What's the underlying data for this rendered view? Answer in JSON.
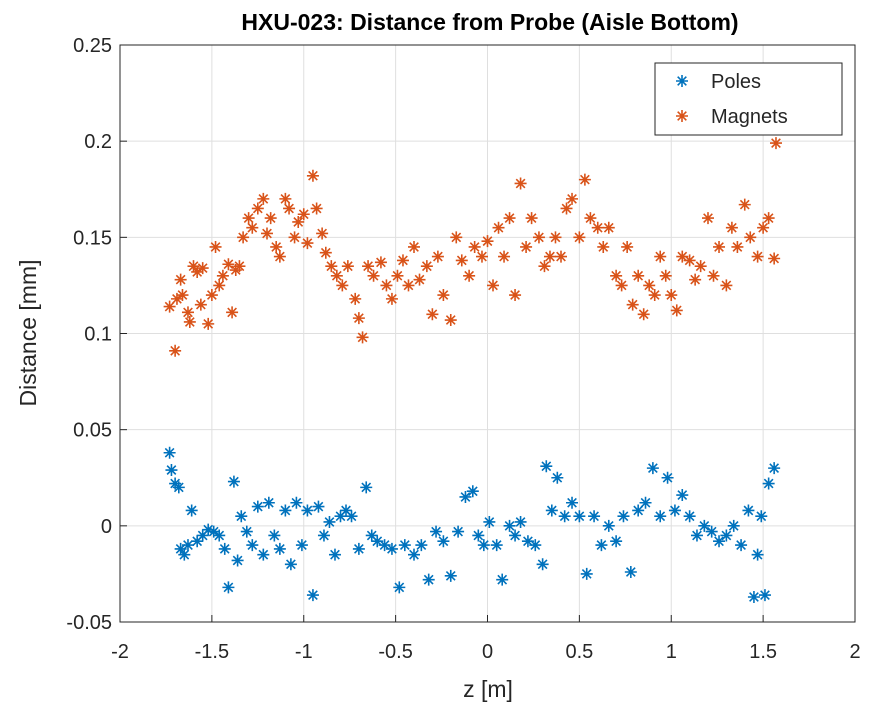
{
  "chart_data": {
    "type": "scatter",
    "title": "HXU-023: Distance from Probe (Aisle Bottom)",
    "xlabel": "z [m]",
    "ylabel": "Distance [mm]",
    "xlim": [
      -2,
      2
    ],
    "xticks": [
      -2,
      -1.5,
      -1,
      -0.5,
      0,
      0.5,
      1,
      1.5,
      2
    ],
    "ylim": [
      -0.05,
      0.25
    ],
    "yticks": [
      -0.05,
      0,
      0.05,
      0.1,
      0.15,
      0.2,
      0.25
    ],
    "grid": true,
    "legend": "northeast",
    "marker": "*",
    "series": [
      {
        "name": "Poles",
        "color": "#0072bd",
        "x": [
          -1.73,
          -1.72,
          -1.7,
          -1.68,
          -1.67,
          -1.65,
          -1.63,
          -1.61,
          -1.58,
          -1.55,
          -1.52,
          -1.49,
          -1.46,
          -1.43,
          -1.41,
          -1.38,
          -1.36,
          -1.34,
          -1.31,
          -1.28,
          -1.25,
          -1.22,
          -1.19,
          -1.16,
          -1.13,
          -1.1,
          -1.07,
          -1.04,
          -1.01,
          -0.98,
          -0.95,
          -0.92,
          -0.89,
          -0.86,
          -0.83,
          -0.8,
          -0.77,
          -0.74,
          -0.7,
          -0.66,
          -0.63,
          -0.6,
          -0.56,
          -0.52,
          -0.48,
          -0.45,
          -0.4,
          -0.36,
          -0.32,
          -0.28,
          -0.24,
          -0.2,
          -0.16,
          -0.12,
          -0.08,
          -0.05,
          -0.02,
          0.01,
          0.05,
          0.08,
          0.12,
          0.15,
          0.18,
          0.22,
          0.26,
          0.3,
          0.32,
          0.35,
          0.38,
          0.42,
          0.46,
          0.5,
          0.54,
          0.58,
          0.62,
          0.66,
          0.7,
          0.74,
          0.78,
          0.82,
          0.86,
          0.9,
          0.94,
          0.98,
          1.02,
          1.06,
          1.1,
          1.14,
          1.18,
          1.22,
          1.26,
          1.3,
          1.34,
          1.38,
          1.42,
          1.45,
          1.47,
          1.49,
          1.51,
          1.53,
          1.56
        ],
        "values": [
          0.038,
          0.029,
          0.022,
          0.02,
          -0.012,
          -0.015,
          -0.01,
          0.008,
          -0.008,
          -0.005,
          -0.002,
          -0.003,
          -0.005,
          -0.012,
          -0.032,
          0.023,
          -0.018,
          0.005,
          -0.003,
          -0.01,
          0.01,
          -0.015,
          0.012,
          -0.005,
          -0.012,
          0.008,
          -0.02,
          0.012,
          -0.01,
          0.008,
          -0.036,
          0.01,
          -0.005,
          0.002,
          -0.015,
          0.005,
          0.008,
          0.005,
          -0.012,
          0.02,
          -0.005,
          -0.008,
          -0.01,
          -0.012,
          -0.032,
          -0.01,
          -0.015,
          -0.01,
          -0.028,
          -0.003,
          -0.008,
          -0.026,
          -0.003,
          0.015,
          0.018,
          -0.005,
          -0.01,
          0.002,
          -0.01,
          -0.028,
          0,
          -0.005,
          0.002,
          -0.008,
          -0.01,
          -0.02,
          0.031,
          0.008,
          0.025,
          0.005,
          0.012,
          0.005,
          -0.025,
          0.005,
          -0.01,
          0,
          -0.008,
          0.005,
          -0.024,
          0.008,
          0.012,
          0.03,
          0.005,
          0.025,
          0.008,
          0.016,
          0.005,
          -0.005,
          0,
          -0.003,
          -0.008,
          -0.005,
          0,
          -0.01,
          0.008,
          -0.037,
          -0.015,
          0.005,
          -0.036,
          0.022,
          0.03
        ]
      },
      {
        "name": "Magnets",
        "color": "#d95319",
        "x": [
          -1.73,
          -1.7,
          -1.69,
          -1.67,
          -1.66,
          -1.63,
          -1.62,
          -1.6,
          -1.58,
          -1.56,
          -1.55,
          -1.52,
          -1.5,
          -1.48,
          -1.46,
          -1.44,
          -1.41,
          -1.39,
          -1.37,
          -1.35,
          -1.33,
          -1.3,
          -1.28,
          -1.25,
          -1.22,
          -1.2,
          -1.18,
          -1.15,
          -1.13,
          -1.1,
          -1.08,
          -1.05,
          -1.03,
          -1,
          -0.98,
          -0.95,
          -0.93,
          -0.9,
          -0.88,
          -0.85,
          -0.82,
          -0.79,
          -0.76,
          -0.72,
          -0.7,
          -0.68,
          -0.65,
          -0.62,
          -0.58,
          -0.55,
          -0.52,
          -0.49,
          -0.46,
          -0.43,
          -0.4,
          -0.37,
          -0.33,
          -0.3,
          -0.27,
          -0.24,
          -0.2,
          -0.17,
          -0.14,
          -0.1,
          -0.07,
          -0.03,
          0,
          0.03,
          0.06,
          0.09,
          0.12,
          0.15,
          0.18,
          0.21,
          0.24,
          0.28,
          0.31,
          0.34,
          0.37,
          0.4,
          0.43,
          0.46,
          0.5,
          0.53,
          0.56,
          0.6,
          0.63,
          0.66,
          0.7,
          0.73,
          0.76,
          0.79,
          0.82,
          0.85,
          0.88,
          0.91,
          0.94,
          0.97,
          1,
          1.03,
          1.06,
          1.1,
          1.13,
          1.16,
          1.2,
          1.23,
          1.26,
          1.3,
          1.33,
          1.36,
          1.4,
          1.43,
          1.47,
          1.5,
          1.53,
          1.56,
          1.57
        ],
        "values": [
          0.114,
          0.091,
          0.118,
          0.128,
          0.12,
          0.111,
          0.106,
          0.135,
          0.132,
          0.115,
          0.134,
          0.105,
          0.12,
          0.145,
          0.125,
          0.13,
          0.136,
          0.111,
          0.133,
          0.135,
          0.15,
          0.16,
          0.155,
          0.165,
          0.17,
          0.152,
          0.16,
          0.145,
          0.14,
          0.17,
          0.165,
          0.15,
          0.158,
          0.162,
          0.147,
          0.182,
          0.165,
          0.152,
          0.142,
          0.135,
          0.13,
          0.125,
          0.135,
          0.118,
          0.108,
          0.098,
          0.135,
          0.13,
          0.137,
          0.125,
          0.118,
          0.13,
          0.138,
          0.125,
          0.145,
          0.128,
          0.135,
          0.11,
          0.14,
          0.12,
          0.107,
          0.15,
          0.138,
          0.13,
          0.145,
          0.14,
          0.148,
          0.125,
          0.155,
          0.14,
          0.16,
          0.12,
          0.178,
          0.145,
          0.16,
          0.15,
          0.135,
          0.14,
          0.15,
          0.14,
          0.165,
          0.17,
          0.15,
          0.18,
          0.16,
          0.155,
          0.145,
          0.155,
          0.13,
          0.125,
          0.145,
          0.115,
          0.13,
          0.11,
          0.125,
          0.12,
          0.14,
          0.13,
          0.12,
          0.112,
          0.14,
          0.138,
          0.128,
          0.135,
          0.16,
          0.13,
          0.145,
          0.125,
          0.155,
          0.145,
          0.167,
          0.15,
          0.14,
          0.155,
          0.16,
          0.139,
          0.199
        ]
      }
    ]
  }
}
